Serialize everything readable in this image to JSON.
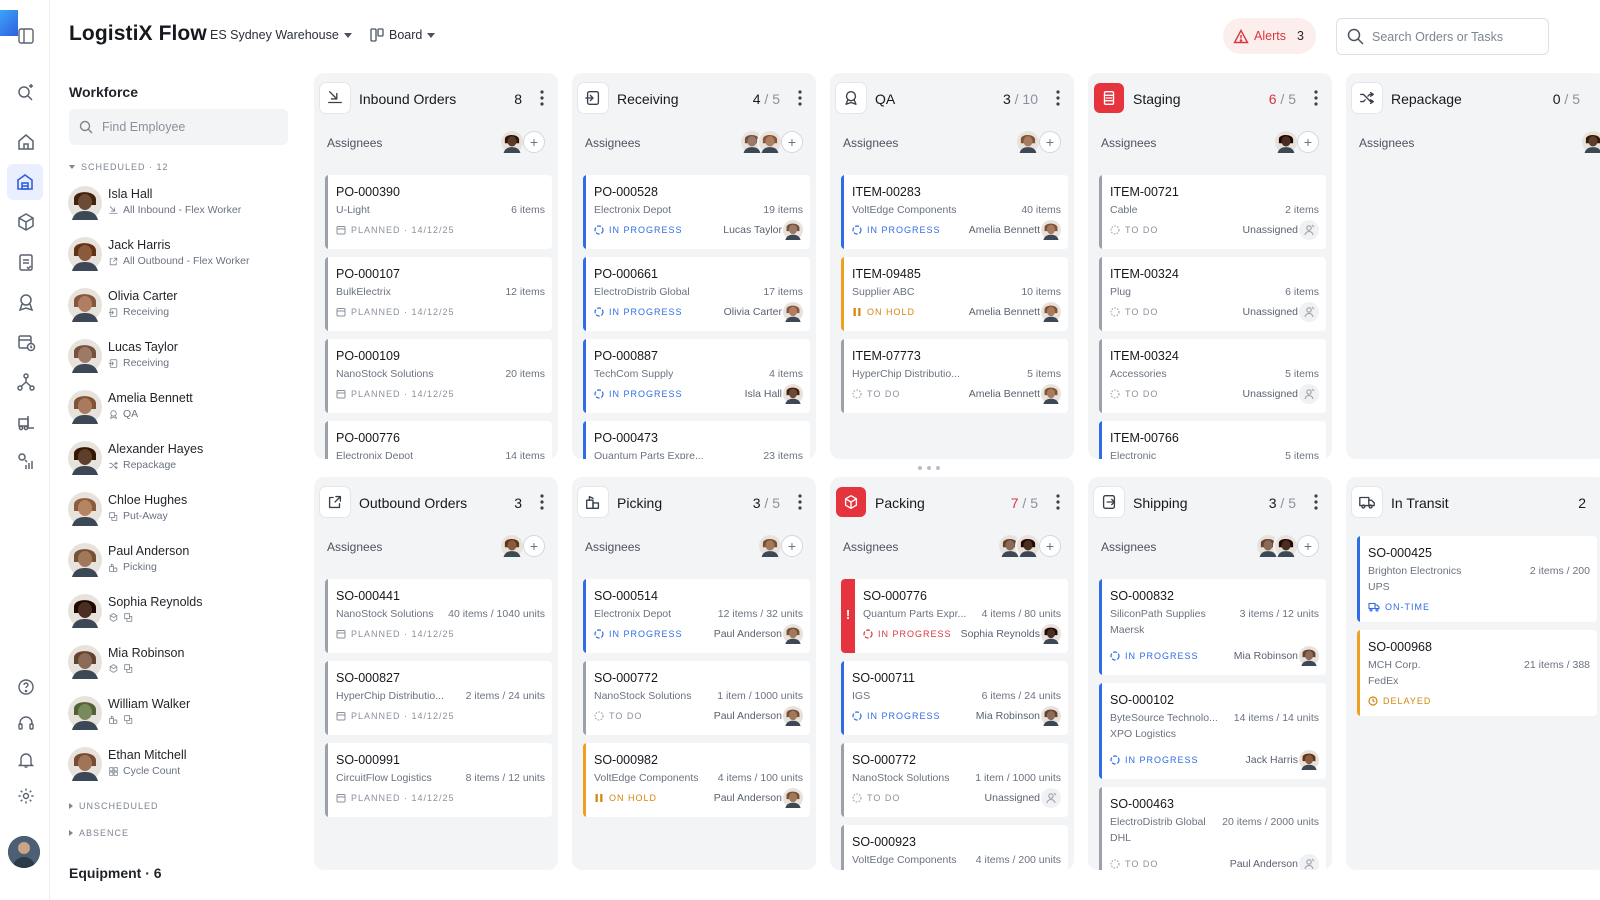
{
  "app": {
    "title": "LogistiX Flow"
  },
  "topbar": {
    "warehouse": "ES Sydney Warehouse",
    "view": "Board",
    "alerts_label": "Alerts",
    "alerts_count": "3",
    "search_placeholder": "Search Orders or Tasks"
  },
  "rail": {
    "icons": [
      "sidebar-toggle-icon",
      "search-sparkle-icon",
      "home-icon",
      "warehouse-icon",
      "box-icon",
      "clipboard-icon",
      "award-icon",
      "calendar-clock-icon",
      "network-icon",
      "forklift-icon",
      "analytics-icon",
      "help-icon",
      "headset-icon",
      "bell-icon",
      "settings-icon"
    ]
  },
  "workforce": {
    "title": "Workforce",
    "search_placeholder": "Find Employee",
    "scheduled_label": "SCHEDULED · 12",
    "unscheduled_label": "UNSCHEDULED",
    "absence_label": "ABSENCE",
    "equipment_label": "Equipment · 6",
    "employees": [
      {
        "name": "Isla Hall",
        "role": "All Inbound - Flex Worker",
        "icon": "inbound-icon",
        "color": "#6b4a36"
      },
      {
        "name": "Jack Harris",
        "role": "All Outbound - Flex Worker",
        "icon": "outbound-icon",
        "color": "#8a5a3c"
      },
      {
        "name": "Olivia Carter",
        "role": "Receiving",
        "icon": "receiving-icon",
        "color": "#b07e62"
      },
      {
        "name": "Lucas Taylor",
        "role": "Receiving",
        "icon": "receiving-icon",
        "color": "#9c7a66"
      },
      {
        "name": "Amelia Bennett",
        "role": "QA",
        "icon": "qa-icon",
        "color": "#a87a5e"
      },
      {
        "name": "Alexander Hayes",
        "role": "Repackage",
        "icon": "shuffle-icon",
        "color": "#5e3f2c"
      },
      {
        "name": "Chloe Hughes",
        "role": "Put-Away",
        "icon": "putaway-icon",
        "color": "#b58462"
      },
      {
        "name": "Paul Anderson",
        "role": "Picking",
        "icon": "picking-icon",
        "color": "#a0785c"
      },
      {
        "name": "Sophia Reynolds",
        "role": "",
        "icon": "box-icon",
        "color": "#4a2e22"
      },
      {
        "name": "Mia Robinson",
        "role": "",
        "icon": "box-icon",
        "color": "#8c6a58"
      },
      {
        "name": "William Walker",
        "role": "",
        "icon": "picking-icon",
        "color": "#7a8a5e"
      },
      {
        "name": "Ethan Mitchell",
        "role": "Cycle Count",
        "icon": "grid-icon",
        "color": "#a07458"
      }
    ]
  },
  "assignees_label": "Assignees",
  "columns": [
    {
      "title": "Inbound Orders",
      "count": "8",
      "limit": "",
      "over": false,
      "icon": "inbound-icon",
      "red": false,
      "avatars": [
        "#5a3a28"
      ],
      "cards": [
        {
          "id": "PO-000390",
          "sub": "U-Light",
          "qty": "6 items",
          "status": "PLANNED · 14/12/25",
          "kind": "pl"
        },
        {
          "id": "PO-000107",
          "sub": "BulkElectrix",
          "qty": "12 items",
          "status": "PLANNED · 14/12/25",
          "kind": "pl"
        },
        {
          "id": "PO-000109",
          "sub": "NanoStock Solutions",
          "qty": "20 items",
          "status": "PLANNED · 14/12/25",
          "kind": "pl"
        },
        {
          "id": "PO-000776",
          "sub": "Electronix Depot",
          "qty": "14 items",
          "status": "",
          "kind": "pl"
        }
      ]
    },
    {
      "title": "Receiving",
      "count": "4",
      "limit": " / 5",
      "over": false,
      "icon": "receiving-icon",
      "red": false,
      "avatars": [
        "#9c7a66",
        "#b07e62"
      ],
      "cards": [
        {
          "id": "PO-000528",
          "sub": "Electronix Depot",
          "qty": "19 items",
          "status": "IN PROGRESS",
          "kind": "ip",
          "who": "Lucas Taylor",
          "wc": "#9c7a66"
        },
        {
          "id": "PO-000661",
          "sub": "ElectroDistrib Global",
          "qty": "17 items",
          "status": "IN PROGRESS",
          "kind": "ip",
          "who": "Olivia Carter",
          "wc": "#b07e62"
        },
        {
          "id": "PO-000887",
          "sub": "TechCom Supply",
          "qty": "4 items",
          "status": "IN PROGRESS",
          "kind": "ip",
          "who": "Isla Hall",
          "wc": "#6b4a36"
        },
        {
          "id": "PO-000473",
          "sub": "Quantum Parts Expre...",
          "qty": "23 items",
          "status": "",
          "kind": "ip"
        }
      ]
    },
    {
      "title": "QA",
      "count": "3",
      "limit": " / 10",
      "over": false,
      "icon": "qa-icon",
      "red": false,
      "avatars": [
        "#a87a5e"
      ],
      "cards": [
        {
          "id": "ITEM-00283",
          "sub": "VoltEdge Components",
          "qty": "40 items",
          "status": "IN PROGRESS",
          "kind": "ip",
          "who": "Amelia Bennett",
          "wc": "#a87a5e"
        },
        {
          "id": "ITEM-09485",
          "sub": "Supplier ABC",
          "qty": "10 items",
          "status": "ON HOLD",
          "kind": "oh",
          "who": "Amelia Bennett",
          "wc": "#a87a5e"
        },
        {
          "id": "ITEM-07773",
          "sub": "HyperChip Distributio...",
          "qty": "5 items",
          "status": "TO DO",
          "kind": "td",
          "who": "Amelia Bennett",
          "wc": "#a87a5e"
        }
      ]
    },
    {
      "title": "Staging",
      "count": "6",
      "limit": " / 5",
      "over": true,
      "icon": "hourglass-icon",
      "red": true,
      "avatars": [
        "#4a2e22"
      ],
      "cards": [
        {
          "id": "ITEM-00721",
          "sub": "Cable",
          "qty": "2 items",
          "status": "TO DO",
          "kind": "td",
          "who": "Unassigned",
          "un": true
        },
        {
          "id": "ITEM-00324",
          "sub": "Plug",
          "qty": "6 items",
          "status": "TO DO",
          "kind": "td",
          "who": "Unassigned",
          "un": true
        },
        {
          "id": "ITEM-00324",
          "sub": "Accessories",
          "qty": "5 items",
          "status": "TO DO",
          "kind": "td",
          "who": "Unassigned",
          "un": true
        },
        {
          "id": "ITEM-00766",
          "sub": "Electronic",
          "qty": "5 items",
          "status": "",
          "kind": "ip"
        }
      ]
    },
    {
      "title": "Repackage",
      "count": "0",
      "limit": " / 5",
      "over": false,
      "icon": "shuffle-icon",
      "red": false,
      "avatars": [
        "#5e3f2c"
      ],
      "cards": []
    },
    {
      "title": "Outbound Orders",
      "count": "3",
      "limit": "",
      "over": false,
      "icon": "outbound-icon",
      "red": false,
      "avatars": [
        "#8a5a3c"
      ],
      "cards": [
        {
          "id": "SO-000441",
          "sub": "NanoStock Solutions",
          "qty": "40 items / 1040 units",
          "status": "PLANNED · 14/12/25",
          "kind": "pl"
        },
        {
          "id": "SO-000827",
          "sub": "HyperChip Distributio...",
          "qty": "2 items / 24 units",
          "status": "PLANNED · 14/12/25",
          "kind": "pl"
        },
        {
          "id": "SO-000991",
          "sub": "CircuitFlow Logistics",
          "qty": "8 items / 12 units",
          "status": "PLANNED · 14/12/25",
          "kind": "pl"
        }
      ]
    },
    {
      "title": "Picking",
      "count": "3",
      "limit": " / 5",
      "over": false,
      "icon": "picking-icon",
      "red": false,
      "avatars": [
        "#a0785c"
      ],
      "cards": [
        {
          "id": "SO-000514",
          "sub": "Electronix Depot",
          "qty": "12 items / 32 units",
          "status": "IN PROGRESS",
          "kind": "ip",
          "who": "Paul Anderson",
          "wc": "#a0785c"
        },
        {
          "id": "SO-000772",
          "sub": "NanoStock Solutions",
          "qty": "1 item / 1000 units",
          "status": "TO DO",
          "kind": "td",
          "who": "Paul Anderson",
          "wc": "#a0785c"
        },
        {
          "id": "SO-000982",
          "sub": "VoltEdge Components",
          "qty": "4 items / 100 units",
          "status": "ON HOLD",
          "kind": "oh",
          "who": "Paul Anderson",
          "wc": "#a0785c"
        }
      ]
    },
    {
      "title": "Packing",
      "count": "7",
      "limit": " / 5",
      "over": true,
      "icon": "package-icon",
      "red": true,
      "avatars": [
        "#8c6a58",
        "#4a2e22"
      ],
      "cards": [
        {
          "id": "SO-000776",
          "sub": "Quantum Parts Expr...",
          "qty": "4 items / 80 units",
          "status": "IN PROGRESS",
          "kind": "crit",
          "who": "Sophia Reynolds",
          "wc": "#4a2e22"
        },
        {
          "id": "SO-000711",
          "sub": "IGS",
          "qty": "6 items / 24 units",
          "status": "IN PROGRESS",
          "kind": "ip",
          "who": "Mia Robinson",
          "wc": "#8c6a58"
        },
        {
          "id": "SO-000772",
          "sub": "NanoStock Solutions",
          "qty": "1 item / 1000 units",
          "status": "TO DO",
          "kind": "td",
          "who": "Unassigned",
          "un": true
        },
        {
          "id": "SO-000923",
          "sub": "VoltEdge Components",
          "qty": "4 items / 200 units",
          "status": "",
          "kind": "pl"
        }
      ]
    },
    {
      "title": "Shipping",
      "count": "3",
      "limit": " / 5",
      "over": false,
      "icon": "shipping-icon",
      "red": false,
      "avatars": [
        "#8c6a58",
        "#4a2e22"
      ],
      "cards": [
        {
          "id": "SO-000832",
          "sub": "SiliconPath Supplies",
          "sub2": "Maersk",
          "qty": "3 items / 12 units",
          "status": "IN PROGRESS",
          "kind": "ip",
          "who": "Mia Robinson",
          "wc": "#8c6a58"
        },
        {
          "id": "SO-000102",
          "sub": "ByteSource Technolo...",
          "sub2": "XPO Logistics",
          "qty": "14 items / 14 units",
          "status": "IN PROGRESS",
          "kind": "ip",
          "who": "Jack Harris",
          "wc": "#8a5a3c"
        },
        {
          "id": "SO-000463",
          "sub": "ElectroDistrib Global",
          "sub2": "DHL",
          "qty": "20 items / 2000 units",
          "status": "TO DO",
          "kind": "td",
          "who": "Paul Anderson",
          "un": true
        }
      ]
    },
    {
      "title": "In Transit",
      "count": "2",
      "limit": "",
      "over": false,
      "icon": "truck-icon",
      "red": false,
      "avatars": [],
      "cards": [
        {
          "id": "SO-000425",
          "sub": "Brighton Electronics",
          "sub2": "UPS",
          "qty": "2 items / 200",
          "status": "ON-TIME",
          "kind": "trd"
        },
        {
          "id": "SO-000968",
          "sub": "MCH Corp.",
          "sub2": "FedEx",
          "qty": "21 items / 388",
          "status": "DELAYED",
          "kind": "trl"
        }
      ]
    }
  ]
}
